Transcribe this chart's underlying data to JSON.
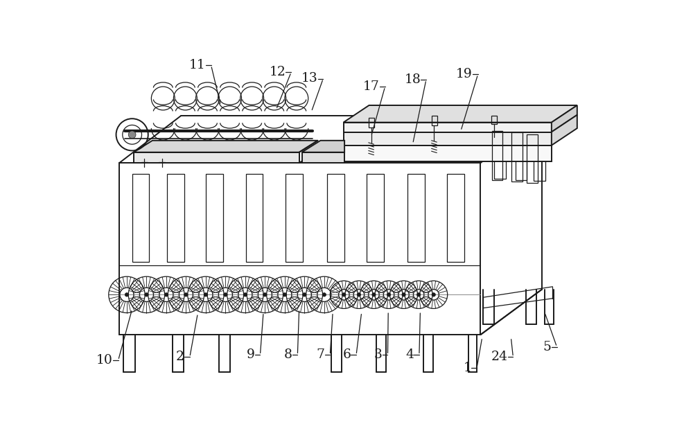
{
  "bg_color": "#ffffff",
  "line_color": "#1a1a1a",
  "label_color": "#1a1a1a",
  "fig_width": 10.0,
  "fig_height": 6.25,
  "label_defs": [
    [
      "11",
      222,
      25,
      248,
      100
    ],
    [
      "12",
      372,
      38,
      352,
      108
    ],
    [
      "13",
      432,
      50,
      418,
      112
    ],
    [
      "17",
      548,
      65,
      530,
      158
    ],
    [
      "18",
      625,
      52,
      608,
      172
    ],
    [
      "19",
      722,
      42,
      698,
      148
    ],
    [
      "10",
      48,
      578,
      82,
      482
    ],
    [
      "2",
      182,
      572,
      205,
      490
    ],
    [
      "9",
      314,
      568,
      328,
      488
    ],
    [
      "8",
      384,
      568,
      395,
      482
    ],
    [
      "7",
      445,
      568,
      458,
      488
    ],
    [
      "6",
      494,
      568,
      512,
      488
    ],
    [
      "3",
      553,
      568,
      562,
      486
    ],
    [
      "4",
      612,
      568,
      622,
      486
    ],
    [
      "1",
      720,
      592,
      738,
      535
    ],
    [
      "24",
      788,
      572,
      792,
      535
    ],
    [
      "5",
      870,
      553,
      855,
      488
    ]
  ]
}
